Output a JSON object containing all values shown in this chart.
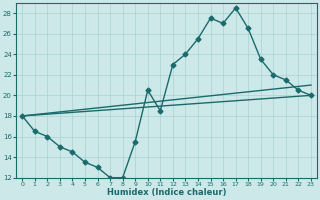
{
  "xlabel": "Humidex (Indice chaleur)",
  "xlim": [
    -0.5,
    23.5
  ],
  "ylim": [
    12,
    29
  ],
  "xticks": [
    0,
    1,
    2,
    3,
    4,
    5,
    6,
    7,
    8,
    9,
    10,
    11,
    12,
    13,
    14,
    15,
    16,
    17,
    18,
    19,
    20,
    21,
    22,
    23
  ],
  "yticks": [
    12,
    14,
    16,
    18,
    20,
    22,
    24,
    26,
    28
  ],
  "background_color": "#cde8e8",
  "grid_color": "#aad0d0",
  "line_color": "#1a6b6b",
  "line1_x": [
    0,
    1,
    2,
    3,
    4,
    5,
    6,
    7,
    8,
    9,
    10,
    11,
    12,
    13,
    14,
    15,
    16,
    17,
    18,
    19,
    20,
    21,
    22,
    23
  ],
  "line1_y": [
    18,
    16.5,
    16,
    15,
    14.5,
    13.5,
    13,
    12,
    12,
    15.5,
    20.5,
    18.5,
    23,
    24,
    25.5,
    27.5,
    27,
    28.5,
    26.5,
    23.5,
    22,
    21.5,
    20.5,
    20
  ],
  "line2_x": [
    0,
    23
  ],
  "line2_y": [
    18,
    21
  ],
  "line3_x": [
    0,
    23
  ],
  "line3_y": [
    18,
    20
  ],
  "marker": "D",
  "markersize": 2.5,
  "linewidth": 1.0
}
